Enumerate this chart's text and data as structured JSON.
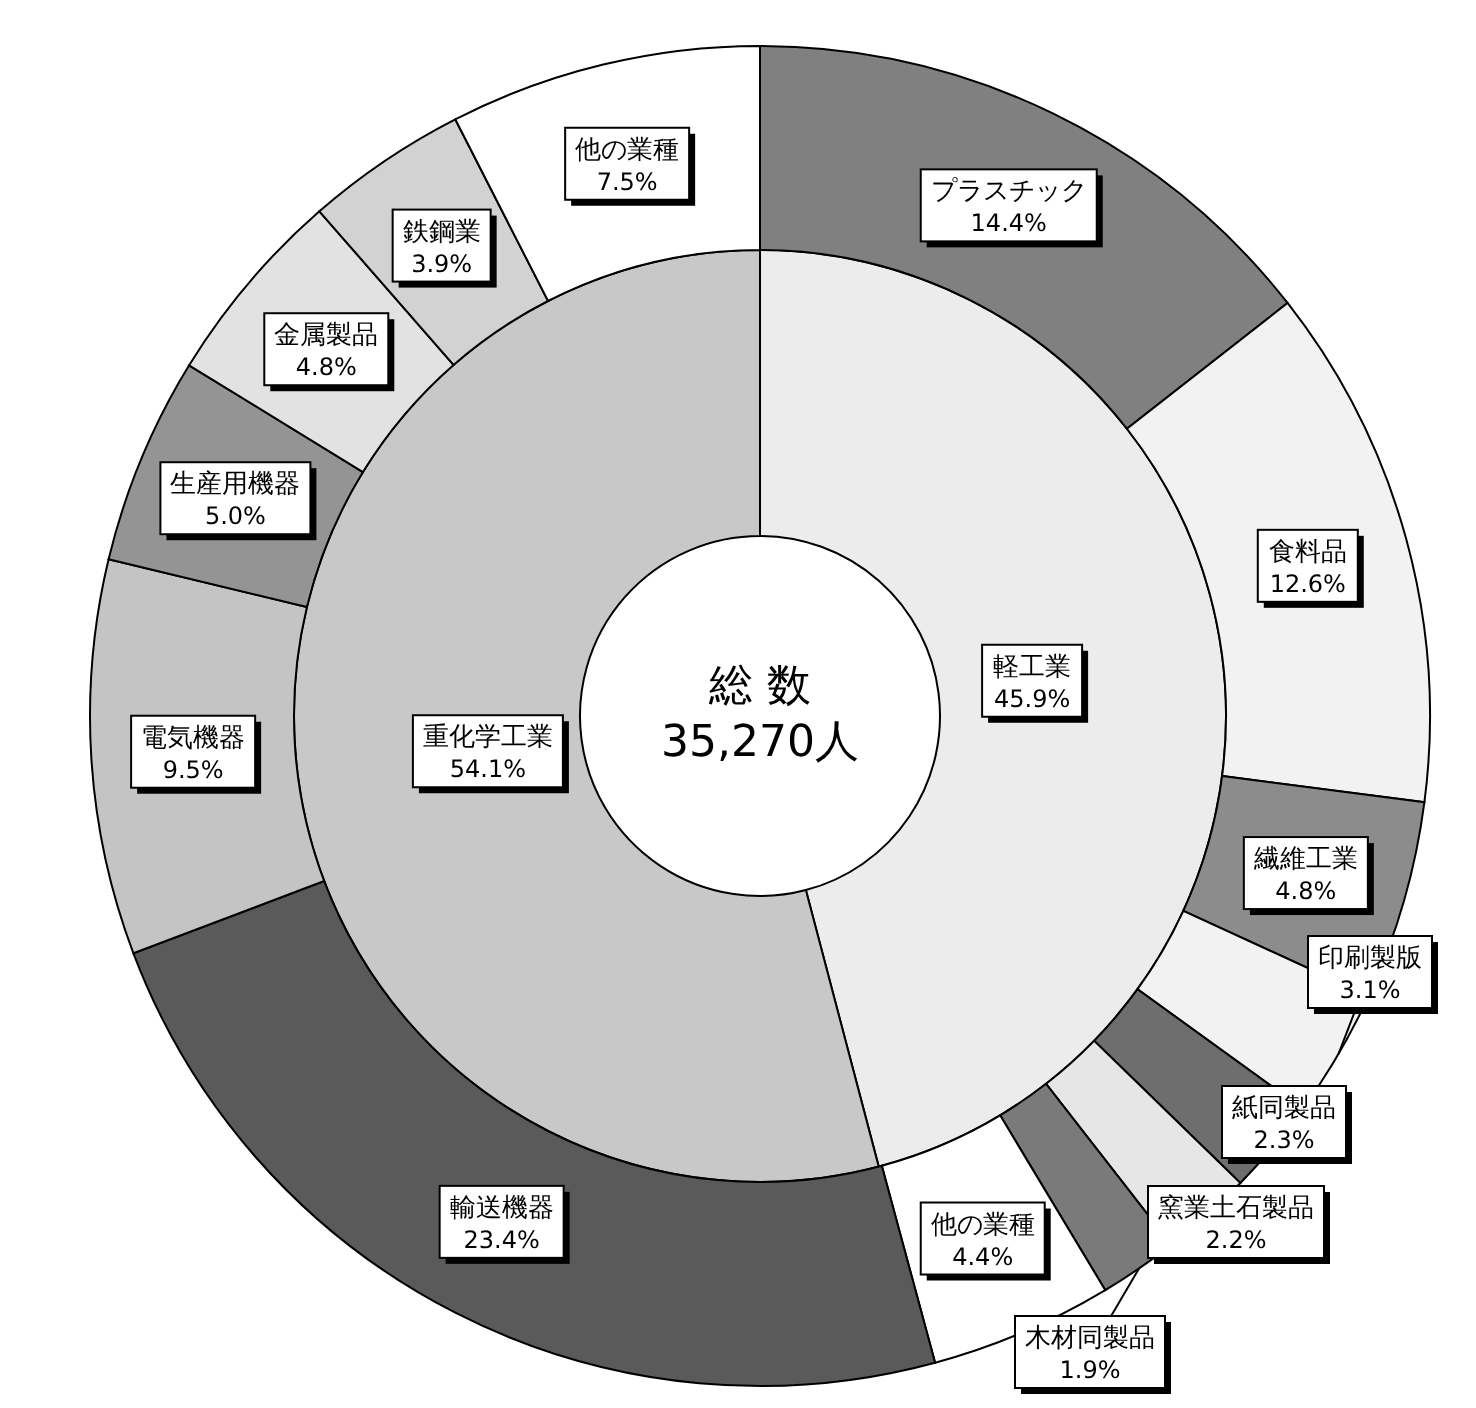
{
  "chart_data": [
    {
      "type": "donut",
      "annotations": [
        "総 数",
        "35,270人"
      ],
      "data_labels": true,
      "categories": [
        "軽工業",
        "重化学工業"
      ],
      "values": [
        45.9,
        54.1
      ],
      "value_labels": [
        "45.9%",
        "54.1%"
      ],
      "colors": [
        "#ececec",
        "#c8c8c8"
      ]
    },
    {
      "type": "donut",
      "data_labels": true,
      "categories": [
        "プラスチック",
        "食料品",
        "繊維工業",
        "印刷製版",
        "紙同製品",
        "窯業土石製品",
        "木材同製品",
        "他の業種",
        "輸送機器",
        "電気機器",
        "生産用機器",
        "金属製品",
        "鉄鋼業",
        "他の業種"
      ],
      "values": [
        14.4,
        12.6,
        4.8,
        3.1,
        2.3,
        2.2,
        1.9,
        4.4,
        23.4,
        9.5,
        5.0,
        4.8,
        3.9,
        7.5
      ],
      "value_labels": [
        "14.4%",
        "12.6%",
        "4.8%",
        "3.1%",
        "2.3%",
        "2.2%",
        "1.9%",
        "4.4%",
        "23.4%",
        "9.5%",
        "5.0%",
        "4.8%",
        "3.9%",
        "7.5%"
      ],
      "colors": [
        "#808080",
        "#f2f2f2",
        "#8c8c8c",
        "#f2f2f2",
        "#6e6e6e",
        "#e6e6e6",
        "#7a7a7a",
        "#ffffff",
        "#5a5a5a",
        "#c4c4c4",
        "#949494",
        "#e2e2e2",
        "#d2d2d2",
        "#ffffff"
      ]
    }
  ]
}
